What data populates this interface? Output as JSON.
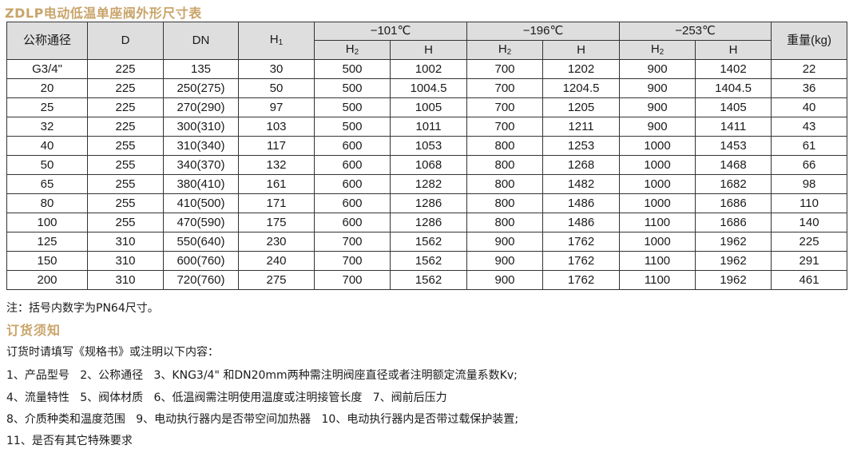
{
  "title": "ZDLP电动低温单座阀外形尺寸表",
  "table": {
    "head": {
      "nominal": "公称通径",
      "D": "D",
      "DN": "DN",
      "H1_base": "H",
      "H1_sub": "1",
      "group1": "−101℃",
      "group2": "−196℃",
      "group3": "−253℃",
      "weight": "重量(kg)",
      "H2_base": "H",
      "H2_sub": "2",
      "H": "H"
    },
    "rows": [
      [
        "G3/4\"",
        "225",
        "135",
        "30",
        "500",
        "1002",
        "700",
        "1202",
        "900",
        "1402",
        "22"
      ],
      [
        "20",
        "225",
        "250(275)",
        "50",
        "500",
        "1004.5",
        "700",
        "1204.5",
        "900",
        "1404.5",
        "36"
      ],
      [
        "25",
        "225",
        "270(290)",
        "97",
        "500",
        "1005",
        "700",
        "1205",
        "900",
        "1405",
        "40"
      ],
      [
        "32",
        "225",
        "300(310)",
        "103",
        "500",
        "1011",
        "700",
        "1211",
        "900",
        "1411",
        "43"
      ],
      [
        "40",
        "255",
        "310(340)",
        "117",
        "600",
        "1053",
        "800",
        "1253",
        "1000",
        "1453",
        "61"
      ],
      [
        "50",
        "255",
        "340(370)",
        "132",
        "600",
        "1068",
        "800",
        "1268",
        "1000",
        "1468",
        "66"
      ],
      [
        "65",
        "255",
        "380(410)",
        "161",
        "600",
        "1282",
        "800",
        "1482",
        "1000",
        "1682",
        "98"
      ],
      [
        "80",
        "255",
        "410(500)",
        "171",
        "600",
        "1286",
        "800",
        "1486",
        "1000",
        "1686",
        "110"
      ],
      [
        "100",
        "255",
        "470(590)",
        "175",
        "600",
        "1286",
        "800",
        "1486",
        "1100",
        "1686",
        "140"
      ],
      [
        "125",
        "310",
        "550(640)",
        "230",
        "700",
        "1562",
        "900",
        "1762",
        "1000",
        "1962",
        "225"
      ],
      [
        "150",
        "310",
        "600(760)",
        "240",
        "700",
        "1562",
        "900",
        "1762",
        "1100",
        "1962",
        "291"
      ],
      [
        "200",
        "310",
        "720(760)",
        "275",
        "700",
        "1562",
        "900",
        "1762",
        "1100",
        "1962",
        "461"
      ]
    ]
  },
  "note": "注：括号内数字为PN64尺寸。",
  "order": {
    "heading": "订货须知",
    "intro": "订货时请填写《规格书》或注明以下内容：",
    "lines": [
      "1、产品型号   2、公称通径   3、KNG3/4\" 和DN20mm两种需注明阀座直径或者注明额定流量系数Kv;",
      "4、流量特性   5、阀体材质   6、低温阀需注明使用温度或注明接管长度   7、阀前后压力",
      "8、介质种类和温度范围   9、电动执行器内是否带空间加热器   10、电动执行器内是否带过载保护装置;",
      "11、是否有其它特殊要求"
    ]
  },
  "colors": {
    "heading_accent": "#c9a46a",
    "header_fill": "#dedede",
    "border": "#333333"
  }
}
